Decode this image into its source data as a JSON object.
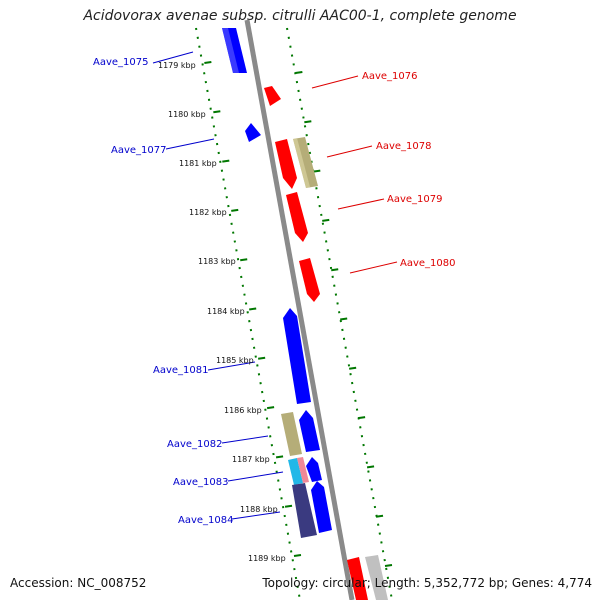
{
  "title": "Acidovorax avenae subsp. citrulli AAC00-1, complete genome",
  "footer": {
    "accession": "Accession: NC_008752",
    "summary": "Topology: circular; Length: 5,352,772 bp; Genes: 4,774"
  },
  "colors": {
    "forward_gene": "#ff0000",
    "reverse_gene": "#0000ff",
    "other_feature": "#b5ad78",
    "navy_feature": "#3a3a80",
    "cyan_feature": "#22b8e8",
    "pink_feature": "#f08898",
    "backbone": "#808080",
    "tick": "#007700"
  },
  "ticks": [
    {
      "label": "1179 kbp"
    },
    {
      "label": "1180 kbp"
    },
    {
      "label": "1181 kbp"
    },
    {
      "label": "1182 kbp"
    },
    {
      "label": "1183 kbp"
    },
    {
      "label": "1184 kbp"
    },
    {
      "label": "1185 kbp"
    },
    {
      "label": "1186 kbp"
    },
    {
      "label": "1187 kbp"
    },
    {
      "label": "1188 kbp"
    },
    {
      "label": "1189 kbp"
    }
  ],
  "gene_labels": [
    {
      "text": "Aave_1075",
      "strand": "reverse"
    },
    {
      "text": "Aave_1076",
      "strand": "forward"
    },
    {
      "text": "Aave_1077",
      "strand": "reverse"
    },
    {
      "text": "Aave_1078",
      "strand": "forward"
    },
    {
      "text": "Aave_1079",
      "strand": "forward"
    },
    {
      "text": "Aave_1080",
      "strand": "forward"
    },
    {
      "text": "Aave_1081",
      "strand": "reverse"
    },
    {
      "text": "Aave_1082",
      "strand": "reverse"
    },
    {
      "text": "Aave_1083",
      "strand": "reverse"
    },
    {
      "text": "Aave_1084",
      "strand": "reverse"
    }
  ]
}
